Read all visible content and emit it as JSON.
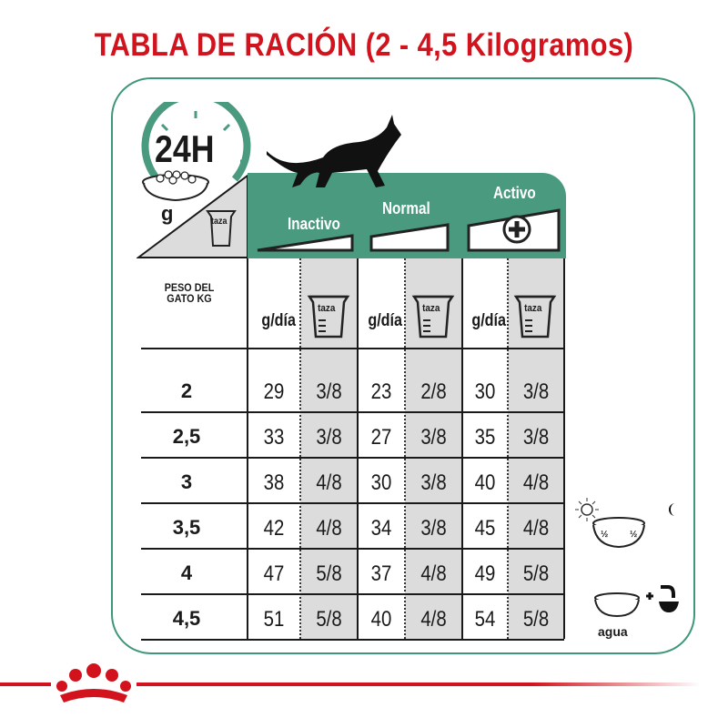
{
  "title": "TABLA DE RACIÓN (2 - 4,5 Kilogramos)",
  "badge": {
    "label": "24H",
    "unit": "g",
    "cup": "taza"
  },
  "levels": [
    "Inactivo",
    "Normal",
    "Activo"
  ],
  "header": {
    "weight": "PESO DEL GATO KG",
    "gday": "g/día",
    "cup": "taza"
  },
  "rows": [
    {
      "kg": "2",
      "v": [
        "29",
        "3/8",
        "23",
        "2/8",
        "30",
        "3/8"
      ]
    },
    {
      "kg": "2,5",
      "v": [
        "33",
        "3/8",
        "27",
        "3/8",
        "35",
        "3/8"
      ]
    },
    {
      "kg": "3",
      "v": [
        "38",
        "4/8",
        "30",
        "3/8",
        "40",
        "4/8"
      ]
    },
    {
      "kg": "3,5",
      "v": [
        "42",
        "4/8",
        "34",
        "3/8",
        "45",
        "4/8"
      ]
    },
    {
      "kg": "4",
      "v": [
        "47",
        "5/8",
        "37",
        "4/8",
        "49",
        "5/8"
      ]
    },
    {
      "kg": "4,5",
      "v": [
        "51",
        "5/8",
        "40",
        "4/8",
        "54",
        "5/8"
      ]
    }
  ],
  "side": {
    "half": "½",
    "water": "agua"
  },
  "colors": {
    "brand_red": "#d2121c",
    "green": "#4a9a80",
    "grey": "#dcdcdc"
  }
}
